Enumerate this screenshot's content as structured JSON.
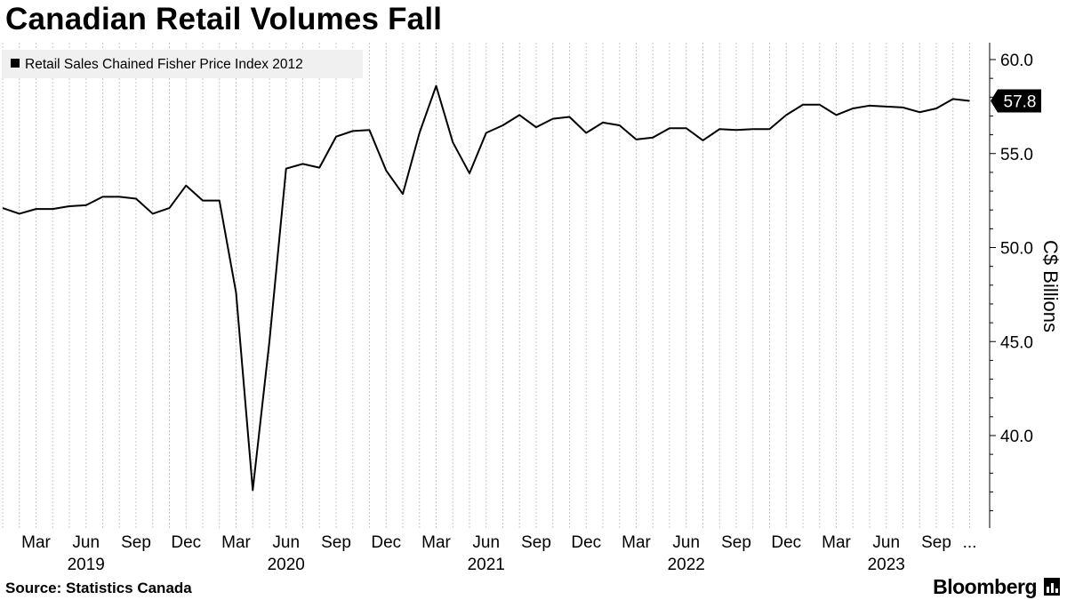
{
  "title": "Canadian Retail Volumes Fall",
  "source": "Source: Statistics Canada",
  "brand": "Bloomberg",
  "icons": {
    "brand_mark": "bloomberg-bar-chart-icon"
  },
  "colors": {
    "line": "#000000",
    "legend_bg": "#f0f0f0",
    "grid": "#c8c8c8",
    "last_value_bg": "#000000",
    "last_value_text": "#ffffff"
  },
  "chart_data": {
    "type": "line",
    "series": [
      {
        "name": "Retail Sales Chained Fisher Price Index 2012",
        "x": [
          "2019-01",
          "2019-02",
          "2019-03",
          "2019-04",
          "2019-05",
          "2019-06",
          "2019-07",
          "2019-08",
          "2019-09",
          "2019-10",
          "2019-11",
          "2019-12",
          "2020-01",
          "2020-02",
          "2020-03",
          "2020-04",
          "2020-05",
          "2020-06",
          "2020-07",
          "2020-08",
          "2020-09",
          "2020-10",
          "2020-11",
          "2020-12",
          "2021-01",
          "2021-02",
          "2021-03",
          "2021-04",
          "2021-05",
          "2021-06",
          "2021-07",
          "2021-08",
          "2021-09",
          "2021-10",
          "2021-11",
          "2021-12",
          "2022-01",
          "2022-02",
          "2022-03",
          "2022-04",
          "2022-05",
          "2022-06",
          "2022-07",
          "2022-08",
          "2022-09",
          "2022-10",
          "2022-11",
          "2022-12",
          "2023-01",
          "2023-02",
          "2023-03",
          "2023-04",
          "2023-05",
          "2023-06",
          "2023-07",
          "2023-08",
          "2023-09",
          "2023-10",
          "2023-11"
        ],
        "values": [
          52.1,
          51.8,
          52.05,
          52.05,
          52.2,
          52.25,
          52.7,
          52.7,
          52.6,
          51.8,
          52.1,
          53.3,
          52.5,
          52.5,
          47.6,
          37.1,
          45.0,
          54.2,
          54.45,
          54.25,
          55.9,
          56.2,
          56.25,
          54.1,
          52.85,
          56.1,
          58.6,
          55.6,
          53.95,
          56.1,
          56.5,
          57.05,
          56.4,
          56.85,
          56.95,
          56.1,
          56.65,
          56.5,
          55.75,
          55.85,
          56.35,
          56.35,
          55.7,
          56.3,
          56.25,
          56.3,
          56.3,
          57.05,
          57.6,
          57.6,
          57.05,
          57.4,
          57.55,
          57.5,
          57.45,
          57.2,
          57.4,
          57.9,
          57.8
        ]
      }
    ],
    "last_value_label": "57.8",
    "legend_label": "Retail Sales Chained Fisher Price Index 2012",
    "legend_position": "top-left",
    "ylabel": "C$ Billions",
    "ylim": [
      35.0,
      60.5
    ],
    "yticks": [
      40.0,
      45.0,
      50.0,
      55.0,
      60.0
    ],
    "ytick_labels": [
      "40.0",
      "45.0",
      "50.0",
      "55.0",
      "60.0"
    ],
    "y_axis_side": "right",
    "month_ticks": [
      {
        "date": "2019-03",
        "label": "Mar"
      },
      {
        "date": "2019-06",
        "label": "Jun"
      },
      {
        "date": "2019-09",
        "label": "Sep"
      },
      {
        "date": "2019-12",
        "label": "Dec"
      },
      {
        "date": "2020-03",
        "label": "Mar"
      },
      {
        "date": "2020-06",
        "label": "Jun"
      },
      {
        "date": "2020-09",
        "label": "Sep"
      },
      {
        "date": "2020-12",
        "label": "Dec"
      },
      {
        "date": "2021-03",
        "label": "Mar"
      },
      {
        "date": "2021-06",
        "label": "Jun"
      },
      {
        "date": "2021-09",
        "label": "Sep"
      },
      {
        "date": "2021-12",
        "label": "Dec"
      },
      {
        "date": "2022-03",
        "label": "Mar"
      },
      {
        "date": "2022-06",
        "label": "Jun"
      },
      {
        "date": "2022-09",
        "label": "Sep"
      },
      {
        "date": "2022-12",
        "label": "Dec"
      },
      {
        "date": "2023-03",
        "label": "Mar"
      },
      {
        "date": "2023-06",
        "label": "Jun"
      },
      {
        "date": "2023-09",
        "label": "Sep"
      },
      {
        "date": "2023-11",
        "label": "..."
      }
    ],
    "year_ticks": [
      {
        "date": "2019-06",
        "label": "2019"
      },
      {
        "date": "2020-06",
        "label": "2020"
      },
      {
        "date": "2021-06",
        "label": "2021"
      },
      {
        "date": "2022-06",
        "label": "2022"
      },
      {
        "date": "2023-06",
        "label": "2023"
      }
    ],
    "grid": "vertical dashed, monthly"
  }
}
